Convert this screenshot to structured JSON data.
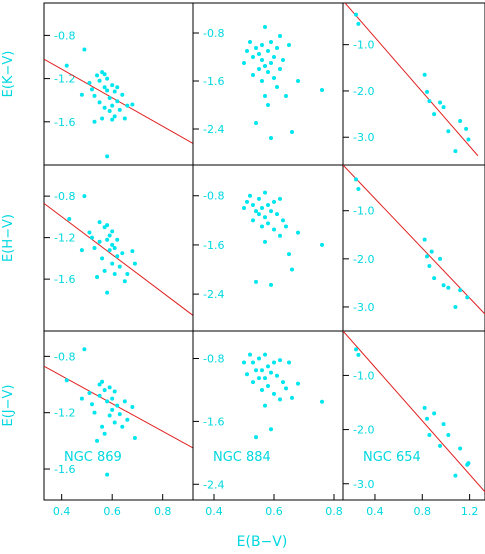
{
  "figure": {
    "xlabel": "E(B−V)",
    "colors": {
      "point": "#00e5ee",
      "fit_line": "#e02020",
      "frame": "#000000",
      "text": "#00d8e0"
    }
  },
  "chart_data": [
    {
      "type": "scatter",
      "panel": "NGC 869 K",
      "row": 0,
      "col": 0,
      "ylabel": "E(K−V)",
      "cluster_label": "",
      "xlim": [
        0.33,
        0.92
      ],
      "ylim": [
        -2.0,
        -0.5
      ],
      "x_ticks": [],
      "y_ticks": [
        "-0.8",
        "-1.2",
        "-1.6"
      ],
      "fit_line": {
        "x": [
          0.33,
          0.92
        ],
        "y": [
          -1.02,
          -1.8
        ]
      },
      "points": [
        {
          "x": 0.42,
          "y": -1.08
        },
        {
          "x": 0.48,
          "y": -1.35
        },
        {
          "x": 0.49,
          "y": -0.93
        },
        {
          "x": 0.51,
          "y": -1.24
        },
        {
          "x": 0.52,
          "y": -1.3
        },
        {
          "x": 0.53,
          "y": -1.36
        },
        {
          "x": 0.53,
          "y": -1.6
        },
        {
          "x": 0.54,
          "y": -1.17
        },
        {
          "x": 0.55,
          "y": -1.22
        },
        {
          "x": 0.55,
          "y": -1.42
        },
        {
          "x": 0.56,
          "y": -1.14
        },
        {
          "x": 0.56,
          "y": -1.57
        },
        {
          "x": 0.57,
          "y": -1.28
        },
        {
          "x": 0.57,
          "y": -1.16
        },
        {
          "x": 0.58,
          "y": -1.2
        },
        {
          "x": 0.58,
          "y": -1.31
        },
        {
          "x": 0.58,
          "y": -1.92
        },
        {
          "x": 0.59,
          "y": -1.38
        },
        {
          "x": 0.59,
          "y": -1.5
        },
        {
          "x": 0.6,
          "y": -1.26
        },
        {
          "x": 0.6,
          "y": -1.45
        },
        {
          "x": 0.61,
          "y": -1.55
        },
        {
          "x": 0.61,
          "y": -1.32
        },
        {
          "x": 0.62,
          "y": -1.28
        },
        {
          "x": 0.62,
          "y": -1.41
        },
        {
          "x": 0.63,
          "y": -1.49
        },
        {
          "x": 0.64,
          "y": -1.35
        },
        {
          "x": 0.65,
          "y": -1.57
        },
        {
          "x": 0.66,
          "y": -1.45
        },
        {
          "x": 0.68,
          "y": -1.44
        },
        {
          "x": 0.57,
          "y": -1.47
        },
        {
          "x": 0.6,
          "y": -1.58
        }
      ]
    },
    {
      "type": "scatter",
      "panel": "NGC 884 K",
      "row": 0,
      "col": 1,
      "ylabel": "",
      "cluster_label": "",
      "xlim": [
        0.33,
        0.83
      ],
      "ylim": [
        -3.0,
        -0.3
      ],
      "x_ticks": [],
      "y_ticks": [
        "-0.8",
        "-1.6",
        "-2.4"
      ],
      "fit_line": null,
      "points": [
        {
          "x": 0.5,
          "y": -1.3
        },
        {
          "x": 0.51,
          "y": -1.1
        },
        {
          "x": 0.52,
          "y": -0.95
        },
        {
          "x": 0.53,
          "y": -1.5
        },
        {
          "x": 0.53,
          "y": -1.2
        },
        {
          "x": 0.54,
          "y": -1.05
        },
        {
          "x": 0.54,
          "y": -2.3
        },
        {
          "x": 0.55,
          "y": -1.4
        },
        {
          "x": 0.55,
          "y": -1.15
        },
        {
          "x": 0.56,
          "y": -1.25
        },
        {
          "x": 0.56,
          "y": -1.6
        },
        {
          "x": 0.56,
          "y": -1.0
        },
        {
          "x": 0.57,
          "y": -1.35
        },
        {
          "x": 0.57,
          "y": -0.7
        },
        {
          "x": 0.57,
          "y": -1.85
        },
        {
          "x": 0.58,
          "y": -1.1
        },
        {
          "x": 0.58,
          "y": -1.45
        },
        {
          "x": 0.58,
          "y": -2.0
        },
        {
          "x": 0.59,
          "y": -1.3
        },
        {
          "x": 0.59,
          "y": -0.95
        },
        {
          "x": 0.59,
          "y": -2.55
        },
        {
          "x": 0.6,
          "y": -1.2
        },
        {
          "x": 0.6,
          "y": -1.55
        },
        {
          "x": 0.61,
          "y": -1.05
        },
        {
          "x": 0.61,
          "y": -1.7
        },
        {
          "x": 0.62,
          "y": -0.85
        },
        {
          "x": 0.62,
          "y": -1.4
        },
        {
          "x": 0.63,
          "y": -1.25
        },
        {
          "x": 0.64,
          "y": -1.85
        },
        {
          "x": 0.65,
          "y": -1.0
        },
        {
          "x": 0.66,
          "y": -2.45
        },
        {
          "x": 0.68,
          "y": -1.6
        },
        {
          "x": 0.76,
          "y": -1.75
        }
      ]
    },
    {
      "type": "scatter",
      "panel": "NGC 654 K",
      "row": 0,
      "col": 2,
      "ylabel": "",
      "cluster_label": "",
      "xlim": [
        0.13,
        1.33
      ],
      "ylim": [
        -3.6,
        -0.1
      ],
      "x_ticks": [],
      "y_ticks": [
        "-1.0",
        "-2.0",
        "-3.0"
      ],
      "fit_line": {
        "x": [
          0.13,
          1.27
        ],
        "y": [
          -0.05,
          -3.4
        ]
      },
      "points": [
        {
          "x": 0.24,
          "y": -0.35
        },
        {
          "x": 0.26,
          "y": -0.55
        },
        {
          "x": 0.82,
          "y": -1.65
        },
        {
          "x": 0.84,
          "y": -2.02
        },
        {
          "x": 0.86,
          "y": -2.22
        },
        {
          "x": 0.9,
          "y": -2.5
        },
        {
          "x": 0.95,
          "y": -2.25
        },
        {
          "x": 0.98,
          "y": -2.35
        },
        {
          "x": 1.02,
          "y": -2.87
        },
        {
          "x": 1.08,
          "y": -3.3
        },
        {
          "x": 1.12,
          "y": -2.65
        },
        {
          "x": 1.17,
          "y": -2.82
        },
        {
          "x": 1.19,
          "y": -3.05
        }
      ]
    },
    {
      "type": "scatter",
      "panel": "NGC 869 H",
      "row": 1,
      "col": 0,
      "ylabel": "E(H−V)",
      "cluster_label": "",
      "xlim": [
        0.33,
        0.92
      ],
      "ylim": [
        -2.1,
        -0.5
      ],
      "x_ticks": [],
      "y_ticks": [
        "-0.8",
        "-1.2",
        "-1.6"
      ],
      "fit_line": {
        "x": [
          0.33,
          0.92
        ],
        "y": [
          -0.87,
          -1.95
        ]
      },
      "points": [
        {
          "x": 0.43,
          "y": -1.02
        },
        {
          "x": 0.48,
          "y": -1.32
        },
        {
          "x": 0.49,
          "y": -0.8
        },
        {
          "x": 0.51,
          "y": -1.15
        },
        {
          "x": 0.52,
          "y": -1.2
        },
        {
          "x": 0.53,
          "y": -1.3
        },
        {
          "x": 0.54,
          "y": -1.58
        },
        {
          "x": 0.55,
          "y": -1.05
        },
        {
          "x": 0.55,
          "y": -1.24
        },
        {
          "x": 0.56,
          "y": -1.4
        },
        {
          "x": 0.57,
          "y": -1.1
        },
        {
          "x": 0.57,
          "y": -1.52
        },
        {
          "x": 0.58,
          "y": -1.22
        },
        {
          "x": 0.58,
          "y": -1.73
        },
        {
          "x": 0.59,
          "y": -1.18
        },
        {
          "x": 0.59,
          "y": -1.32
        },
        {
          "x": 0.6,
          "y": -1.27
        },
        {
          "x": 0.6,
          "y": -1.45
        },
        {
          "x": 0.61,
          "y": -1.3
        },
        {
          "x": 0.61,
          "y": -1.55
        },
        {
          "x": 0.62,
          "y": -1.22
        },
        {
          "x": 0.62,
          "y": -1.38
        },
        {
          "x": 0.63,
          "y": -1.48
        },
        {
          "x": 0.64,
          "y": -1.35
        },
        {
          "x": 0.65,
          "y": -1.62
        },
        {
          "x": 0.66,
          "y": -1.55
        },
        {
          "x": 0.68,
          "y": -1.33
        },
        {
          "x": 0.69,
          "y": -1.45
        },
        {
          "x": 0.58,
          "y": -1.08
        },
        {
          "x": 0.6,
          "y": -1.14
        }
      ]
    },
    {
      "type": "scatter",
      "panel": "NGC 884 H",
      "row": 1,
      "col": 1,
      "ylabel": "",
      "cluster_label": "",
      "xlim": [
        0.33,
        0.83
      ],
      "ylim": [
        -3.0,
        -0.3
      ],
      "x_ticks": [],
      "y_ticks": [
        "-0.8",
        "-1.6",
        "-2.4"
      ],
      "fit_line": null,
      "points": [
        {
          "x": 0.5,
          "y": -1.0
        },
        {
          "x": 0.51,
          "y": -0.9
        },
        {
          "x": 0.52,
          "y": -0.8
        },
        {
          "x": 0.53,
          "y": -1.2
        },
        {
          "x": 0.53,
          "y": -0.95
        },
        {
          "x": 0.54,
          "y": -1.05
        },
        {
          "x": 0.54,
          "y": -2.2
        },
        {
          "x": 0.55,
          "y": -1.1
        },
        {
          "x": 0.55,
          "y": -0.85
        },
        {
          "x": 0.56,
          "y": -1.0
        },
        {
          "x": 0.56,
          "y": -1.3
        },
        {
          "x": 0.57,
          "y": -0.75
        },
        {
          "x": 0.57,
          "y": -1.15
        },
        {
          "x": 0.57,
          "y": -1.55
        },
        {
          "x": 0.58,
          "y": -0.95
        },
        {
          "x": 0.58,
          "y": -1.25
        },
        {
          "x": 0.59,
          "y": -1.05
        },
        {
          "x": 0.59,
          "y": -2.25
        },
        {
          "x": 0.6,
          "y": -0.9
        },
        {
          "x": 0.6,
          "y": -1.35
        },
        {
          "x": 0.61,
          "y": -1.1
        },
        {
          "x": 0.62,
          "y": -0.85
        },
        {
          "x": 0.62,
          "y": -1.45
        },
        {
          "x": 0.63,
          "y": -1.2
        },
        {
          "x": 0.64,
          "y": -1.3
        },
        {
          "x": 0.65,
          "y": -1.75
        },
        {
          "x": 0.66,
          "y": -2.0
        },
        {
          "x": 0.68,
          "y": -1.4
        },
        {
          "x": 0.76,
          "y": -1.6
        }
      ]
    },
    {
      "type": "scatter",
      "panel": "NGC 654 H",
      "row": 1,
      "col": 2,
      "ylabel": "",
      "cluster_label": "",
      "xlim": [
        0.13,
        1.33
      ],
      "ylim": [
        -3.5,
        -0.05
      ],
      "x_ticks": [],
      "y_ticks": [
        "-1.0",
        "-2.0",
        "-3.0"
      ],
      "fit_line": {
        "x": [
          0.13,
          1.33
        ],
        "y": [
          -0.05,
          -3.15
        ]
      },
      "points": [
        {
          "x": 0.24,
          "y": -0.35
        },
        {
          "x": 0.26,
          "y": -0.55
        },
        {
          "x": 0.82,
          "y": -1.6
        },
        {
          "x": 0.84,
          "y": -1.95
        },
        {
          "x": 0.86,
          "y": -2.15
        },
        {
          "x": 0.88,
          "y": -1.85
        },
        {
          "x": 0.9,
          "y": -2.4
        },
        {
          "x": 0.95,
          "y": -2.0
        },
        {
          "x": 0.98,
          "y": -2.55
        },
        {
          "x": 1.02,
          "y": -2.6
        },
        {
          "x": 1.08,
          "y": -3.0
        },
        {
          "x": 1.12,
          "y": -2.65
        },
        {
          "x": 1.18,
          "y": -2.8
        }
      ]
    },
    {
      "type": "scatter",
      "panel": "NGC 869 J",
      "row": 2,
      "col": 0,
      "ylabel": "E(J−V)",
      "cluster_label": "NGC 869",
      "xlim": [
        0.33,
        0.92
      ],
      "ylim": [
        -1.82,
        -0.62
      ],
      "x_ticks": [
        "0.4",
        "0.6",
        "0.8"
      ],
      "y_ticks": [
        "-0.8",
        "-1.2",
        "-1.6"
      ],
      "fit_line": {
        "x": [
          0.33,
          0.92
        ],
        "y": [
          -0.87,
          -1.45
        ]
      },
      "points": [
        {
          "x": 0.42,
          "y": -0.97
        },
        {
          "x": 0.48,
          "y": -1.1
        },
        {
          "x": 0.49,
          "y": -0.75
        },
        {
          "x": 0.51,
          "y": -1.06
        },
        {
          "x": 0.52,
          "y": -1.14
        },
        {
          "x": 0.53,
          "y": -1.2
        },
        {
          "x": 0.54,
          "y": -1.4
        },
        {
          "x": 0.55,
          "y": -1.0
        },
        {
          "x": 0.55,
          "y": -1.08
        },
        {
          "x": 0.56,
          "y": -1.3
        },
        {
          "x": 0.56,
          "y": -0.98
        },
        {
          "x": 0.57,
          "y": -1.35
        },
        {
          "x": 0.57,
          "y": -1.04
        },
        {
          "x": 0.58,
          "y": -1.12
        },
        {
          "x": 0.58,
          "y": -1.64
        },
        {
          "x": 0.59,
          "y": -1.02
        },
        {
          "x": 0.59,
          "y": -1.22
        },
        {
          "x": 0.6,
          "y": -1.1
        },
        {
          "x": 0.6,
          "y": -1.18
        },
        {
          "x": 0.61,
          "y": -1.27
        },
        {
          "x": 0.61,
          "y": -1.05
        },
        {
          "x": 0.62,
          "y": -1.15
        },
        {
          "x": 0.63,
          "y": -1.21
        },
        {
          "x": 0.64,
          "y": -1.3
        },
        {
          "x": 0.65,
          "y": -1.12
        },
        {
          "x": 0.66,
          "y": -1.25
        },
        {
          "x": 0.68,
          "y": -1.16
        },
        {
          "x": 0.69,
          "y": -1.38
        }
      ]
    },
    {
      "type": "scatter",
      "panel": "NGC 884 J",
      "row": 2,
      "col": 1,
      "ylabel": "",
      "cluster_label": "NGC 884",
      "xlim": [
        0.33,
        0.83
      ],
      "ylim": [
        -2.6,
        -0.45
      ],
      "x_ticks": [
        "0.4",
        "0.6",
        "0.8"
      ],
      "y_ticks": [
        "-0.8",
        "-1.6",
        "-2.4"
      ],
      "fit_line": null,
      "points": [
        {
          "x": 0.5,
          "y": -0.85
        },
        {
          "x": 0.51,
          "y": -1.0
        },
        {
          "x": 0.52,
          "y": -0.75
        },
        {
          "x": 0.53,
          "y": -1.1
        },
        {
          "x": 0.53,
          "y": -0.85
        },
        {
          "x": 0.54,
          "y": -0.95
        },
        {
          "x": 0.54,
          "y": -1.8
        },
        {
          "x": 0.55,
          "y": -1.05
        },
        {
          "x": 0.55,
          "y": -0.8
        },
        {
          "x": 0.56,
          "y": -0.95
        },
        {
          "x": 0.56,
          "y": -1.2
        },
        {
          "x": 0.57,
          "y": -0.75
        },
        {
          "x": 0.57,
          "y": -1.05
        },
        {
          "x": 0.57,
          "y": -1.4
        },
        {
          "x": 0.58,
          "y": -0.9
        },
        {
          "x": 0.58,
          "y": -1.15
        },
        {
          "x": 0.59,
          "y": -0.98
        },
        {
          "x": 0.59,
          "y": -1.7
        },
        {
          "x": 0.6,
          "y": -0.85
        },
        {
          "x": 0.6,
          "y": -1.25
        },
        {
          "x": 0.61,
          "y": -1.02
        },
        {
          "x": 0.62,
          "y": -0.82
        },
        {
          "x": 0.62,
          "y": -1.32
        },
        {
          "x": 0.63,
          "y": -1.1
        },
        {
          "x": 0.64,
          "y": -1.18
        },
        {
          "x": 0.65,
          "y": -0.85
        },
        {
          "x": 0.66,
          "y": -1.3
        },
        {
          "x": 0.68,
          "y": -1.12
        },
        {
          "x": 0.76,
          "y": -1.35
        }
      ]
    },
    {
      "type": "scatter",
      "panel": "NGC 654 J",
      "row": 2,
      "col": 2,
      "ylabel": "",
      "cluster_label": "NGC 654",
      "xlim": [
        0.13,
        1.33
      ],
      "ylim": [
        -3.3,
        -0.18
      ],
      "x_ticks": [
        "0.4",
        "0.8",
        "1.2"
      ],
      "y_ticks": [
        "-1.0",
        "-2.0",
        "-3.0"
      ],
      "fit_line": {
        "x": [
          0.13,
          1.33
        ],
        "y": [
          -0.18,
          -3.15
        ]
      },
      "points": [
        {
          "x": 0.24,
          "y": -0.52
        },
        {
          "x": 0.26,
          "y": -0.62
        },
        {
          "x": 0.82,
          "y": -1.6
        },
        {
          "x": 0.84,
          "y": -1.8
        },
        {
          "x": 0.86,
          "y": -2.1
        },
        {
          "x": 0.9,
          "y": -1.7
        },
        {
          "x": 0.95,
          "y": -2.3
        },
        {
          "x": 0.98,
          "y": -1.9
        },
        {
          "x": 1.02,
          "y": -2.1
        },
        {
          "x": 1.08,
          "y": -2.85
        },
        {
          "x": 1.12,
          "y": -2.35
        },
        {
          "x": 1.18,
          "y": -2.65
        },
        {
          "x": 1.19,
          "y": -2.62
        }
      ]
    }
  ]
}
